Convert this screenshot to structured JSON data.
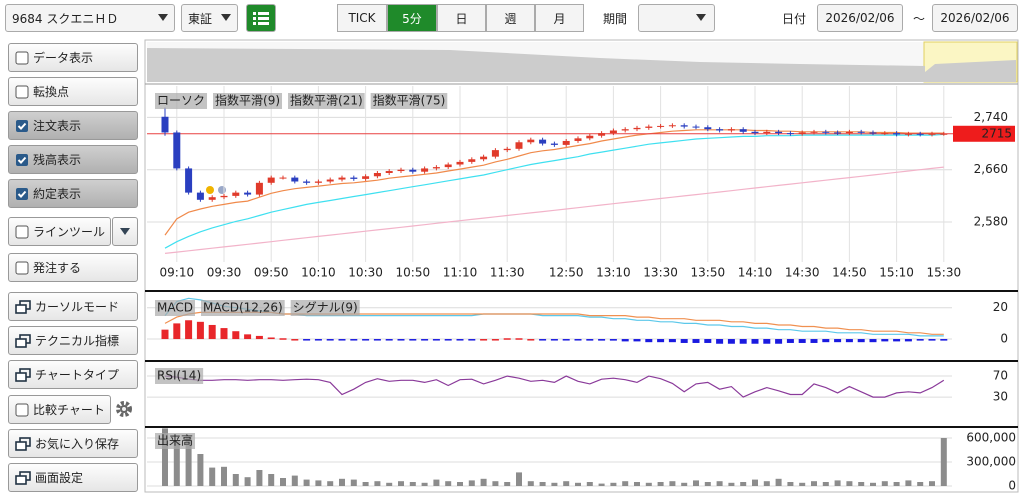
{
  "toolbar": {
    "symbol": "9684 スクエニＨＤ",
    "market": "東証",
    "tabs": [
      "TICK",
      "5分",
      "日",
      "週",
      "月"
    ],
    "active_tab": 1,
    "period_label": "期間",
    "date_label": "日付",
    "date_from": "2026/02/06",
    "separator": "～",
    "date_to": "2026/02/06"
  },
  "sidebar": [
    {
      "label": "データ表示",
      "checked": false
    },
    {
      "label": "転換点",
      "checked": false
    },
    {
      "label": "注文表示",
      "checked": true
    },
    {
      "label": "残高表示",
      "checked": true
    },
    {
      "label": "約定表示",
      "checked": true
    },
    {
      "label": "ラインツール",
      "checked": false
    },
    {
      "label": "発注する",
      "checked": false
    },
    {
      "label": "カーソルモード"
    },
    {
      "label": "テクニカル指標"
    },
    {
      "label": "チャートタイプ"
    },
    {
      "label": "比較チャート",
      "checked": false
    },
    {
      "label": "お気に入り保存"
    },
    {
      "label": "画面設定"
    }
  ],
  "chart_data": [
    {
      "type": "candlestick",
      "grid": true,
      "current_price": 2715,
      "ylim": [
        2525,
        2785
      ],
      "yticks": [
        {
          "value": 2740,
          "label": "2,740"
        },
        {
          "value": 2660,
          "label": "2,660"
        },
        {
          "value": 2580,
          "label": "2,580"
        }
      ],
      "categories": [
        null,
        "09:10",
        null,
        null,
        null,
        "09:30",
        null,
        null,
        null,
        "09:50",
        null,
        null,
        null,
        "10:10",
        null,
        null,
        null,
        "10:30",
        null,
        null,
        null,
        "10:50",
        null,
        null,
        null,
        "11:10",
        null,
        null,
        null,
        "11:30",
        null,
        null,
        null,
        null,
        "12:50",
        null,
        null,
        null,
        "13:10",
        null,
        null,
        null,
        "13:30",
        null,
        null,
        null,
        "13:50",
        null,
        null,
        null,
        "14:10",
        null,
        null,
        null,
        "14:30",
        null,
        null,
        null,
        "14:50",
        null,
        null,
        null,
        "15:10",
        null,
        null,
        null,
        "15:30"
      ],
      "candles": {
        "name": "ローソク",
        "up_color": "#e03a2a",
        "down_color": "#2a3fc0",
        "open": [
          2741,
          2717,
          2662,
          2625,
          2614,
          2618,
          2620,
          2625,
          2622,
          2640,
          2648,
          2648,
          2642,
          2640,
          2642,
          2645,
          2648,
          2646,
          2650,
          2655,
          2658,
          2660,
          2657,
          2662,
          2664,
          2668,
          2672,
          2676,
          2680,
          2690,
          2692,
          2702,
          2706,
          2700,
          2698,
          2704,
          2708,
          2712,
          2716,
          2720,
          2722,
          2724,
          2726,
          2727,
          2728,
          2726,
          2725,
          2722,
          2720,
          2722,
          2718,
          2716,
          2718,
          2716,
          2715,
          2717,
          2718,
          2717,
          2716,
          2718,
          2717,
          2716,
          2716,
          2714,
          2715,
          2714,
          2715
        ],
        "high": [
          2755,
          2720,
          2665,
          2628,
          2621,
          2623,
          2628,
          2628,
          2643,
          2651,
          2651,
          2651,
          2645,
          2645,
          2648,
          2651,
          2651,
          2653,
          2658,
          2661,
          2663,
          2663,
          2665,
          2667,
          2671,
          2675,
          2679,
          2683,
          2693,
          2695,
          2705,
          2709,
          2709,
          2703,
          2707,
          2711,
          2715,
          2719,
          2723,
          2725,
          2727,
          2729,
          2730,
          2731,
          2731,
          2729,
          2728,
          2725,
          2725,
          2725,
          2721,
          2721,
          2721,
          2719,
          2720,
          2721,
          2721,
          2720,
          2721,
          2721,
          2720,
          2719,
          2719,
          2718,
          2718,
          2718,
          2718
        ],
        "low": [
          2712,
          2659,
          2622,
          2611,
          2611,
          2615,
          2617,
          2619,
          2619,
          2637,
          2645,
          2639,
          2637,
          2637,
          2639,
          2642,
          2643,
          2643,
          2647,
          2652,
          2655,
          2654,
          2654,
          2659,
          2661,
          2665,
          2669,
          2673,
          2677,
          2687,
          2689,
          2699,
          2697,
          2695,
          2695,
          2701,
          2705,
          2709,
          2713,
          2717,
          2719,
          2721,
          2723,
          2724,
          2723,
          2722,
          2719,
          2717,
          2717,
          2715,
          2713,
          2713,
          2713,
          2712,
          2712,
          2714,
          2714,
          2713,
          2713,
          2714,
          2713,
          2713,
          2711,
          2711,
          2711,
          2711,
          2712
        ],
        "close": [
          2717,
          2662,
          2625,
          2614,
          2618,
          2620,
          2625,
          2622,
          2640,
          2648,
          2648,
          2642,
          2640,
          2642,
          2645,
          2648,
          2646,
          2650,
          2655,
          2658,
          2660,
          2657,
          2662,
          2664,
          2668,
          2672,
          2676,
          2680,
          2690,
          2692,
          2702,
          2706,
          2700,
          2698,
          2704,
          2708,
          2712,
          2716,
          2720,
          2722,
          2724,
          2726,
          2727,
          2728,
          2726,
          2725,
          2722,
          2720,
          2722,
          2718,
          2716,
          2718,
          2716,
          2715,
          2717,
          2718,
          2717,
          2716,
          2718,
          2717,
          2716,
          2716,
          2714,
          2715,
          2714,
          2715,
          2715
        ]
      },
      "series": [
        {
          "name": "指数平滑(9)",
          "color": "#f08a4b",
          "values": [
            2560,
            2585,
            2595,
            2600,
            2604,
            2607,
            2610,
            2612,
            2618,
            2624,
            2628,
            2631,
            2633,
            2635,
            2637,
            2639,
            2640,
            2642,
            2644,
            2647,
            2649,
            2651,
            2653,
            2655,
            2658,
            2661,
            2664,
            2667,
            2672,
            2676,
            2681,
            2686,
            2689,
            2691,
            2694,
            2697,
            2700,
            2704,
            2707,
            2710,
            2713,
            2715,
            2717,
            2719,
            2720,
            2721,
            2721,
            2721,
            2721,
            2721,
            2720,
            2720,
            2719,
            2719,
            2718,
            2718,
            2718,
            2718,
            2718,
            2718,
            2717,
            2717,
            2717,
            2716,
            2716,
            2716,
            2716
          ]
        },
        {
          "name": "指数平滑(21)",
          "color": "#3fe0f0",
          "values": [
            2540,
            2550,
            2558,
            2565,
            2571,
            2576,
            2581,
            2585,
            2590,
            2595,
            2599,
            2603,
            2607,
            2610,
            2613,
            2616,
            2619,
            2622,
            2625,
            2628,
            2631,
            2634,
            2637,
            2640,
            2643,
            2646,
            2649,
            2652,
            2656,
            2660,
            2664,
            2668,
            2671,
            2674,
            2677,
            2680,
            2684,
            2687,
            2690,
            2693,
            2696,
            2699,
            2701,
            2703,
            2705,
            2707,
            2708,
            2709,
            2710,
            2711,
            2711,
            2712,
            2712,
            2712,
            2713,
            2713,
            2713,
            2713,
            2713,
            2713,
            2713,
            2713,
            2713,
            2713,
            2713,
            2713,
            2714
          ]
        },
        {
          "name": "指数平滑(75)",
          "color": "#f2b3c9",
          "values": [
            2532,
            2534,
            2536,
            2538,
            2540,
            2542,
            2544,
            2546,
            2548,
            2550,
            2552,
            2554,
            2556,
            2558,
            2560,
            2562,
            2564,
            2566,
            2568,
            2570,
            2572,
            2574,
            2576,
            2578,
            2580,
            2582,
            2584,
            2586,
            2588,
            2590,
            2592,
            2594,
            2596,
            2598,
            2600,
            2602,
            2604,
            2606,
            2608,
            2610,
            2612,
            2614,
            2616,
            2618,
            2620,
            2622,
            2624,
            2626,
            2628,
            2630,
            2632,
            2634,
            2636,
            2638,
            2640,
            2642,
            2644,
            2646,
            2648,
            2650,
            2652,
            2654,
            2656,
            2658,
            2660,
            2662,
            2664
          ]
        }
      ]
    },
    {
      "type": "macd",
      "grid": true,
      "ylim": [
        -7,
        27.5
      ],
      "yticks": [
        20,
        0
      ],
      "histogram": {
        "name": "MACD",
        "pos_color": "#e8262a",
        "neg_color": "#1a1ae0",
        "values": [
          6,
          10,
          12,
          11,
          9,
          7,
          5,
          3,
          2,
          1,
          0.5,
          0,
          -0.5,
          -0.5,
          -0.5,
          -0.5,
          -0.5,
          -0.5,
          -0.5,
          -0.5,
          -0.5,
          -0.5,
          -0.5,
          -0.5,
          -0.5,
          -0.5,
          -0.5,
          0,
          0,
          0.5,
          0.5,
          0,
          -0.5,
          -0.5,
          -0.5,
          -0.5,
          -1,
          -1,
          -1,
          -1.5,
          -1.5,
          -2,
          -2,
          -2,
          -2.5,
          -2.5,
          -2.5,
          -3,
          -3,
          -3,
          -3,
          -3,
          -3,
          -2.5,
          -2.5,
          -2.5,
          -2,
          -2,
          -2,
          -2,
          -2,
          -1.5,
          -1.5,
          -1.5,
          -1,
          -1,
          -1
        ]
      },
      "series": [
        {
          "name": "MACD(12,26)",
          "color": "#5cc8ea",
          "values": [
            15,
            24,
            26,
            25,
            23,
            21,
            20,
            19,
            18,
            17,
            16,
            16,
            15,
            15,
            15,
            15,
            15,
            15,
            15,
            15,
            15,
            15,
            15,
            15,
            15,
            15,
            15,
            16,
            16,
            16,
            16,
            16,
            15,
            15,
            15,
            15,
            14,
            14,
            13,
            13,
            12,
            12,
            11,
            11,
            10,
            10,
            9,
            9,
            8,
            8,
            7,
            7,
            6,
            6,
            5,
            5,
            5,
            4,
            4,
            4,
            3,
            3,
            3,
            3,
            2,
            2,
            2
          ]
        },
        {
          "name": "シグナル(9)",
          "color": "#f09050",
          "values": [
            10,
            14,
            16,
            17,
            17,
            17,
            17,
            17,
            17,
            17,
            16,
            16,
            16,
            16,
            16,
            16,
            16,
            16,
            16,
            16,
            16,
            16,
            16,
            16,
            16,
            16,
            16,
            16,
            16,
            16,
            16,
            16,
            16,
            16,
            16,
            16,
            15,
            15,
            15,
            15,
            14,
            14,
            13,
            13,
            13,
            12,
            12,
            12,
            11,
            11,
            10,
            10,
            9,
            9,
            8,
            8,
            7,
            7,
            6,
            6,
            5,
            5,
            5,
            4,
            4,
            3,
            3
          ]
        }
      ]
    },
    {
      "type": "line",
      "grid": true,
      "ylim": [
        -23,
        91
      ],
      "yticks": [
        70,
        30
      ],
      "series": [
        {
          "name": "RSI(14)",
          "color": "#8a3a9a",
          "values": [
            70,
            68,
            64,
            62,
            62,
            63,
            63,
            62,
            63,
            63,
            62,
            63,
            64,
            63,
            58,
            35,
            45,
            58,
            65,
            60,
            62,
            62,
            58,
            63,
            52,
            63,
            64,
            55,
            62,
            70,
            66,
            60,
            62,
            58,
            70,
            60,
            55,
            64,
            66,
            63,
            58,
            70,
            65,
            56,
            40,
            55,
            58,
            45,
            50,
            30,
            40,
            48,
            42,
            35,
            35,
            55,
            48,
            38,
            50,
            40,
            30,
            30,
            38,
            40,
            38,
            48,
            62
          ]
        }
      ]
    },
    {
      "type": "bar",
      "grid": true,
      "ylim": [
        0,
        750000
      ],
      "yticks": [
        {
          "value": 600000,
          "label": "600,000"
        },
        {
          "value": 300000,
          "label": "300,000"
        },
        0
      ],
      "series": [
        {
          "name": "出来高",
          "color": "#8c8c8c",
          "values": [
            720000,
            560000,
            620000,
            400000,
            230000,
            240000,
            150000,
            110000,
            200000,
            150000,
            100000,
            130000,
            80000,
            70000,
            60000,
            90000,
            80000,
            50000,
            60000,
            40000,
            60000,
            50000,
            40000,
            80000,
            60000,
            50000,
            70000,
            90000,
            60000,
            50000,
            170000,
            60000,
            50000,
            40000,
            60000,
            40000,
            50000,
            30000,
            40000,
            60000,
            50000,
            40000,
            50000,
            60000,
            40000,
            70000,
            50000,
            60000,
            40000,
            50000,
            80000,
            60000,
            90000,
            50000,
            40000,
            60000,
            50000,
            70000,
            60000,
            50000,
            40000,
            60000,
            50000,
            70000,
            50000,
            60000,
            600000
          ]
        }
      ]
    }
  ]
}
